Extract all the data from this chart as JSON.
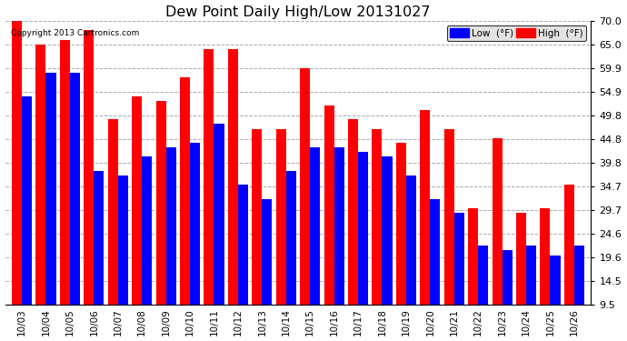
{
  "title": "Dew Point Daily High/Low 20131027",
  "copyright": "Copyright 2013 Cartronics.com",
  "categories": [
    "10/03",
    "10/04",
    "10/05",
    "10/06",
    "10/07",
    "10/08",
    "10/09",
    "10/10",
    "10/11",
    "10/12",
    "10/13",
    "10/14",
    "10/15",
    "10/16",
    "10/17",
    "10/18",
    "10/19",
    "10/20",
    "10/21",
    "10/22",
    "10/23",
    "10/24",
    "10/25",
    "10/26"
  ],
  "high_values": [
    70.0,
    65.0,
    66.0,
    68.0,
    49.0,
    54.0,
    53.0,
    58.0,
    64.0,
    64.0,
    47.0,
    47.0,
    60.0,
    52.0,
    49.0,
    47.0,
    44.0,
    51.0,
    47.0,
    30.0,
    45.0,
    29.0,
    30.0,
    35.0
  ],
  "low_values": [
    54.0,
    59.0,
    59.0,
    38.0,
    37.0,
    41.0,
    43.0,
    44.0,
    48.0,
    35.0,
    32.0,
    38.0,
    43.0,
    43.0,
    42.0,
    41.0,
    37.0,
    32.0,
    29.0,
    22.0,
    21.0,
    22.0,
    20.0,
    22.0
  ],
  "high_color": "#ff0000",
  "low_color": "#0000ff",
  "bg_color": "#ffffff",
  "plot_bg": "#ffffff",
  "grid_color": "#aaaaaa",
  "ylim_min": 9.5,
  "ylim_max": 70.0,
  "bar_bottom": 9.5,
  "yticks": [
    9.5,
    14.5,
    19.6,
    24.6,
    29.7,
    34.7,
    39.8,
    44.8,
    49.8,
    54.9,
    59.9,
    65.0,
    70.0
  ],
  "ytick_labels": [
    "9.5",
    "14.5",
    "19.6",
    "24.6",
    "29.7",
    "34.7",
    "39.8",
    "44.8",
    "49.8",
    "54.9",
    "59.9",
    "65.0",
    "70.0"
  ]
}
